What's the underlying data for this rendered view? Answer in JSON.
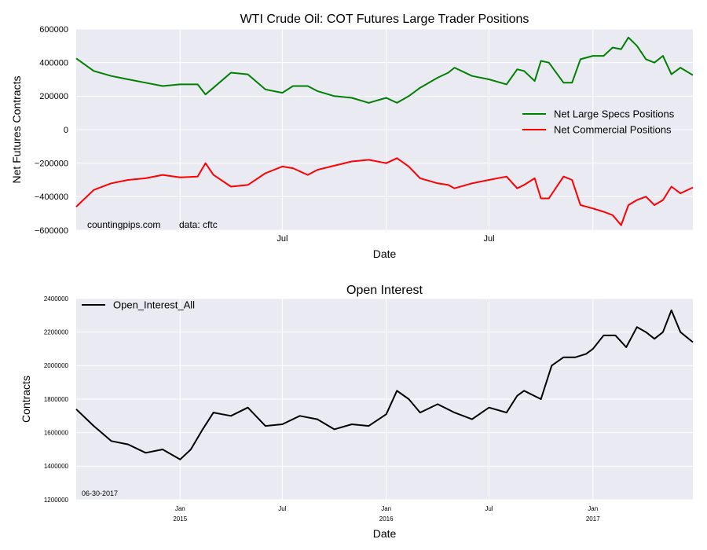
{
  "chart_data": [
    {
      "type": "line",
      "title": "WTI Crude Oil: COT Futures Large Trader Positions",
      "xlabel": "Date",
      "ylabel": "Net Futures Contracts",
      "ylim": [
        -600000,
        600000
      ],
      "yticks": [
        600000,
        400000,
        200000,
        0,
        -200000,
        -400000,
        -600000
      ],
      "ytick_labels": [
        "600000",
        "400000",
        "200000",
        "0",
        "−200000",
        "−400000",
        "−600000"
      ],
      "xrange": [
        "2014-07-01",
        "2017-06-27"
      ],
      "xticks": [
        {
          "date": "2015-01-01",
          "label": ""
        },
        {
          "date": "2015-07-01",
          "label": "Jul"
        },
        {
          "date": "2016-01-01",
          "label": ""
        },
        {
          "date": "2016-07-01",
          "label": "Jul"
        },
        {
          "date": "2017-01-01",
          "label": ""
        }
      ],
      "grid": true,
      "legend": "center-right",
      "annotations": [
        "countingpips.com",
        "data: cftc"
      ],
      "series": [
        {
          "name": "Net Large Specs Positions",
          "color": "#008000",
          "dates": [
            "2014-07-01",
            "2014-08-01",
            "2014-09-01",
            "2014-10-01",
            "2014-11-01",
            "2014-12-01",
            "2015-01-01",
            "2015-02-01",
            "2015-02-15",
            "2015-03-01",
            "2015-04-01",
            "2015-05-01",
            "2015-06-01",
            "2015-07-01",
            "2015-07-20",
            "2015-08-15",
            "2015-09-01",
            "2015-10-01",
            "2015-11-01",
            "2015-12-01",
            "2016-01-01",
            "2016-01-20",
            "2016-02-10",
            "2016-03-01",
            "2016-04-01",
            "2016-04-20",
            "2016-05-01",
            "2016-06-01",
            "2016-07-01",
            "2016-08-01",
            "2016-08-20",
            "2016-09-01",
            "2016-09-20",
            "2016-10-01",
            "2016-10-15",
            "2016-11-10",
            "2016-11-25",
            "2016-12-10",
            "2017-01-01",
            "2017-01-20",
            "2017-02-05",
            "2017-02-20",
            "2017-03-05",
            "2017-03-20",
            "2017-04-05",
            "2017-04-20",
            "2017-05-05",
            "2017-05-20",
            "2017-06-05",
            "2017-06-27"
          ],
          "values": [
            425000,
            350000,
            320000,
            300000,
            280000,
            260000,
            270000,
            270000,
            210000,
            250000,
            340000,
            330000,
            240000,
            220000,
            260000,
            260000,
            230000,
            200000,
            190000,
            160000,
            190000,
            160000,
            200000,
            250000,
            310000,
            340000,
            370000,
            320000,
            300000,
            270000,
            360000,
            350000,
            290000,
            410000,
            400000,
            280000,
            280000,
            420000,
            440000,
            440000,
            490000,
            480000,
            550000,
            500000,
            420000,
            400000,
            440000,
            330000,
            370000,
            325000
          ]
        },
        {
          "name": "Net Commercial Positions",
          "color": "#ff0000",
          "dates": [
            "2014-07-01",
            "2014-08-01",
            "2014-09-01",
            "2014-10-01",
            "2014-11-01",
            "2014-12-01",
            "2015-01-01",
            "2015-02-01",
            "2015-02-15",
            "2015-03-01",
            "2015-04-01",
            "2015-05-01",
            "2015-06-01",
            "2015-07-01",
            "2015-07-20",
            "2015-08-15",
            "2015-09-01",
            "2015-10-01",
            "2015-11-01",
            "2015-12-01",
            "2016-01-01",
            "2016-01-20",
            "2016-02-10",
            "2016-03-01",
            "2016-04-01",
            "2016-04-20",
            "2016-05-01",
            "2016-06-01",
            "2016-07-01",
            "2016-08-01",
            "2016-08-20",
            "2016-09-01",
            "2016-09-20",
            "2016-10-01",
            "2016-10-15",
            "2016-11-10",
            "2016-11-25",
            "2016-12-10",
            "2017-01-01",
            "2017-01-20",
            "2017-02-05",
            "2017-02-20",
            "2017-03-05",
            "2017-03-20",
            "2017-04-05",
            "2017-04-20",
            "2017-05-05",
            "2017-05-20",
            "2017-06-05",
            "2017-06-27"
          ],
          "values": [
            -460000,
            -360000,
            -320000,
            -300000,
            -290000,
            -270000,
            -285000,
            -280000,
            -200000,
            -270000,
            -340000,
            -330000,
            -260000,
            -220000,
            -230000,
            -270000,
            -240000,
            -215000,
            -190000,
            -180000,
            -200000,
            -170000,
            -220000,
            -290000,
            -320000,
            -330000,
            -350000,
            -320000,
            -300000,
            -280000,
            -350000,
            -330000,
            -290000,
            -410000,
            -410000,
            -280000,
            -300000,
            -450000,
            -470000,
            -490000,
            -510000,
            -570000,
            -450000,
            -420000,
            -400000,
            -450000,
            -420000,
            -340000,
            -380000,
            -345000
          ]
        }
      ]
    },
    {
      "type": "line",
      "title": "Open Interest",
      "xlabel": "Date",
      "ylabel": "Contracts",
      "ylim": [
        1200000,
        2400000
      ],
      "yticks": [
        2400000,
        2200000,
        2000000,
        1800000,
        1600000,
        1400000,
        1200000
      ],
      "ytick_labels": [
        "2400000",
        "2200000",
        "2000000",
        "1800000",
        "1600000",
        "1400000",
        "1200000"
      ],
      "xrange": [
        "2014-07-01",
        "2017-06-27"
      ],
      "xticks": [
        {
          "date": "2015-01-01",
          "label": "Jan",
          "sublabel": "2015"
        },
        {
          "date": "2015-07-01",
          "label": "Jul",
          "sublabel": ""
        },
        {
          "date": "2016-01-01",
          "label": "Jan",
          "sublabel": "2016"
        },
        {
          "date": "2016-07-01",
          "label": "Jul",
          "sublabel": ""
        },
        {
          "date": "2017-01-01",
          "label": "Jan",
          "sublabel": "2017"
        }
      ],
      "grid": true,
      "legend": "upper-left",
      "annotations": [
        "06-30-2017"
      ],
      "series": [
        {
          "name": "Open_Interest_All",
          "color": "#000000",
          "dates": [
            "2014-07-01",
            "2014-08-01",
            "2014-09-01",
            "2014-10-01",
            "2014-11-01",
            "2014-12-01",
            "2015-01-01",
            "2015-01-20",
            "2015-02-10",
            "2015-03-01",
            "2015-04-01",
            "2015-05-01",
            "2015-06-01",
            "2015-07-01",
            "2015-08-01",
            "2015-09-01",
            "2015-10-01",
            "2015-11-01",
            "2015-12-01",
            "2016-01-01",
            "2016-01-20",
            "2016-02-10",
            "2016-03-01",
            "2016-04-01",
            "2016-05-01",
            "2016-06-01",
            "2016-07-01",
            "2016-08-01",
            "2016-08-20",
            "2016-09-01",
            "2016-10-01",
            "2016-10-20",
            "2016-11-10",
            "2016-12-01",
            "2016-12-20",
            "2017-01-01",
            "2017-01-20",
            "2017-02-10",
            "2017-03-01",
            "2017-03-20",
            "2017-04-05",
            "2017-04-20",
            "2017-05-05",
            "2017-05-20",
            "2017-06-05",
            "2017-06-27"
          ],
          "values": [
            1740000,
            1640000,
            1550000,
            1530000,
            1480000,
            1500000,
            1440000,
            1500000,
            1620000,
            1720000,
            1700000,
            1750000,
            1640000,
            1650000,
            1700000,
            1680000,
            1620000,
            1650000,
            1640000,
            1710000,
            1850000,
            1800000,
            1720000,
            1770000,
            1720000,
            1680000,
            1750000,
            1720000,
            1820000,
            1850000,
            1800000,
            2000000,
            2050000,
            2050000,
            2070000,
            2100000,
            2180000,
            2180000,
            2110000,
            2230000,
            2200000,
            2160000,
            2200000,
            2330000,
            2200000,
            2140000
          ]
        }
      ]
    }
  ]
}
